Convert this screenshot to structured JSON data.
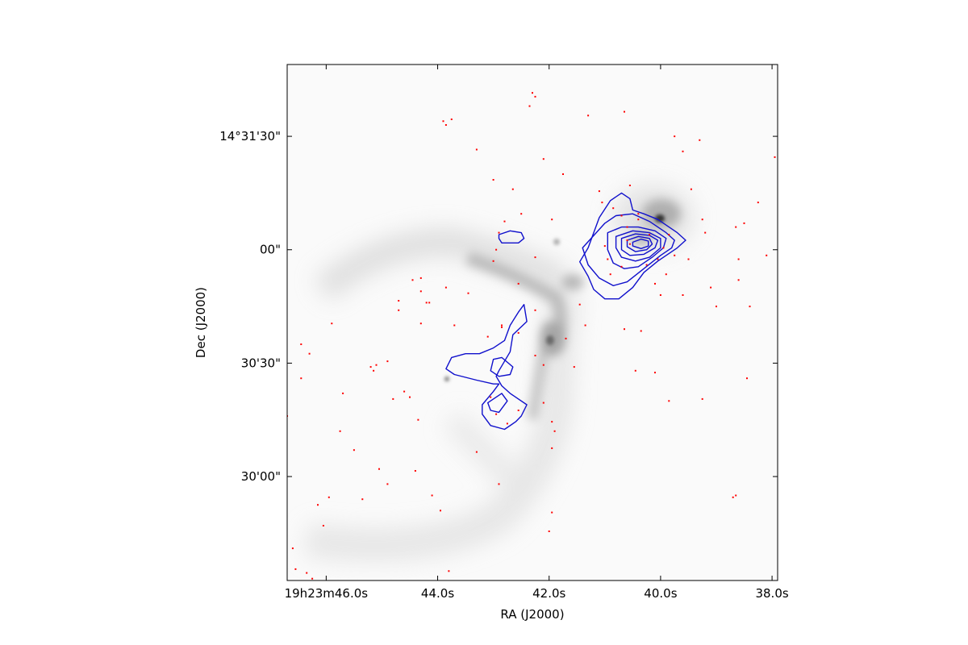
{
  "chart_data": {
    "type": "contour",
    "xlabel": "RA (J2000)",
    "ylabel": "Dec (J2000)",
    "x_axis": {
      "direction": "decreasing-right",
      "ticks": [
        {
          "label": "19h23m46.0s",
          "ra_sec": 46.0
        },
        {
          "label": "44.0s",
          "ra_sec": 44.0
        },
        {
          "label": "42.0s",
          "ra_sec": 42.0
        },
        {
          "label": "40.0s",
          "ra_sec": 40.0
        },
        {
          "label": "38.0s",
          "ra_sec": 38.0
        }
      ],
      "range_ra_sec": [
        46.7,
        37.9
      ]
    },
    "y_axis": {
      "ticks": [
        {
          "label": "14°31'30\"",
          "dec_arcsec": 90
        },
        {
          "label": "00\"",
          "dec_arcsec": 60
        },
        {
          "label": "30'30\"",
          "dec_arcsec": 30
        },
        {
          "label": "30'00\"",
          "dec_arcsec": 0
        }
      ],
      "dec_offset_note": "",
      "range_dec_arcsec": [
        -27.5,
        109
      ]
    },
    "colors": {
      "background": "#ffffff",
      "contour": "#1010cc",
      "sources": "#ff0000",
      "frame": "#000000"
    },
    "grid": false,
    "contours": [
      {
        "group": "main",
        "level": 1,
        "points": [
          [
            41.45,
            56.8
          ],
          [
            41.3,
            60.5
          ],
          [
            41.1,
            68.5
          ],
          [
            40.9,
            73.0
          ],
          [
            40.7,
            75.0
          ],
          [
            40.55,
            73.5
          ],
          [
            40.5,
            70.5
          ],
          [
            40.3,
            69.5
          ],
          [
            40.05,
            68.0
          ],
          [
            39.85,
            66.0
          ],
          [
            39.7,
            64.5
          ],
          [
            39.55,
            62.5
          ],
          [
            39.7,
            60.5
          ],
          [
            39.85,
            59.0
          ],
          [
            40.05,
            57.0
          ],
          [
            40.3,
            54.0
          ],
          [
            40.5,
            50.0
          ],
          [
            40.75,
            47.0
          ],
          [
            41.0,
            47.0
          ],
          [
            41.2,
            49.5
          ],
          [
            41.3,
            53.0
          ],
          [
            41.45,
            56.8
          ]
        ]
      },
      {
        "group": "main",
        "level": 2,
        "points": [
          [
            41.4,
            60.5
          ],
          [
            41.0,
            67.0
          ],
          [
            40.8,
            69.0
          ],
          [
            40.5,
            69.5
          ],
          [
            40.2,
            67.5
          ],
          [
            39.9,
            64.5
          ],
          [
            39.75,
            62.5
          ],
          [
            39.8,
            60.5
          ],
          [
            40.0,
            58.5
          ],
          [
            40.3,
            55.0
          ],
          [
            40.6,
            51.5
          ],
          [
            40.85,
            50.5
          ],
          [
            41.1,
            52.5
          ],
          [
            41.3,
            56.0
          ],
          [
            41.4,
            60.5
          ]
        ]
      },
      {
        "group": "main",
        "level": 3,
        "points": [
          [
            40.95,
            64.5
          ],
          [
            40.7,
            66.0
          ],
          [
            40.4,
            66.0
          ],
          [
            40.1,
            65.0
          ],
          [
            39.9,
            63.0
          ],
          [
            39.95,
            60.5
          ],
          [
            40.15,
            58.0
          ],
          [
            40.4,
            55.5
          ],
          [
            40.65,
            55.0
          ],
          [
            40.85,
            56.5
          ],
          [
            40.95,
            60.0
          ],
          [
            40.95,
            64.5
          ]
        ]
      },
      {
        "group": "main",
        "level": 4,
        "points": [
          [
            40.8,
            63.5
          ],
          [
            40.5,
            65.0
          ],
          [
            40.2,
            64.5
          ],
          [
            40.0,
            63.0
          ],
          [
            40.0,
            60.5
          ],
          [
            40.2,
            58.0
          ],
          [
            40.45,
            57.0
          ],
          [
            40.7,
            58.0
          ],
          [
            40.8,
            60.5
          ],
          [
            40.8,
            63.5
          ]
        ]
      },
      {
        "group": "main",
        "level": 5,
        "points": [
          [
            40.7,
            63.0
          ],
          [
            40.45,
            64.2
          ],
          [
            40.2,
            63.8
          ],
          [
            40.05,
            62.5
          ],
          [
            40.1,
            60.5
          ],
          [
            40.3,
            58.8
          ],
          [
            40.55,
            58.5
          ],
          [
            40.7,
            60.0
          ],
          [
            40.7,
            63.0
          ]
        ]
      },
      {
        "group": "main",
        "level": 6,
        "points": [
          [
            40.6,
            62.5
          ],
          [
            40.4,
            63.5
          ],
          [
            40.2,
            63.0
          ],
          [
            40.15,
            61.5
          ],
          [
            40.25,
            60.0
          ],
          [
            40.45,
            59.5
          ],
          [
            40.6,
            60.8
          ],
          [
            40.6,
            62.5
          ]
        ]
      },
      {
        "group": "main",
        "level": 7,
        "points": [
          [
            40.5,
            62.0
          ],
          [
            40.35,
            62.8
          ],
          [
            40.22,
            62.3
          ],
          [
            40.22,
            61.0
          ],
          [
            40.35,
            60.3
          ],
          [
            40.5,
            61.0
          ],
          [
            40.5,
            62.0
          ]
        ]
      },
      {
        "group": "small-blob",
        "level": 1,
        "points": [
          [
            42.9,
            64.0
          ],
          [
            42.7,
            65.0
          ],
          [
            42.5,
            64.5
          ],
          [
            42.45,
            63.0
          ],
          [
            42.55,
            61.8
          ],
          [
            42.85,
            61.8
          ],
          [
            42.9,
            63.0
          ],
          [
            42.9,
            64.0
          ]
        ]
      },
      {
        "group": "southern",
        "level": 1,
        "points": [
          [
            42.45,
            45.5
          ],
          [
            42.4,
            41.0
          ],
          [
            42.65,
            37.5
          ],
          [
            42.7,
            33.0
          ],
          [
            42.9,
            28.0
          ],
          [
            42.95,
            26.5
          ],
          [
            42.85,
            24.0
          ],
          [
            42.7,
            22.0
          ],
          [
            42.4,
            19.0
          ],
          [
            42.5,
            16.0
          ],
          [
            42.6,
            14.5
          ],
          [
            42.8,
            12.5
          ],
          [
            43.05,
            13.5
          ],
          [
            43.2,
            16.5
          ],
          [
            43.2,
            19.0
          ],
          [
            43.0,
            22.5
          ],
          [
            42.9,
            24.5
          ],
          [
            43.0,
            24.5
          ],
          [
            43.3,
            25.5
          ],
          [
            43.7,
            27.0
          ],
          [
            43.85,
            28.5
          ],
          [
            43.75,
            31.5
          ],
          [
            43.5,
            32.5
          ],
          [
            43.25,
            32.5
          ],
          [
            43.0,
            34.0
          ],
          [
            42.8,
            36.0
          ],
          [
            42.7,
            40.0
          ],
          [
            42.55,
            43.5
          ],
          [
            42.45,
            45.5
          ]
        ]
      },
      {
        "group": "southern",
        "level": 2,
        "points": [
          [
            43.0,
            31.0
          ],
          [
            42.85,
            31.5
          ],
          [
            42.65,
            29.0
          ],
          [
            42.7,
            27.0
          ],
          [
            42.9,
            26.5
          ],
          [
            43.05,
            28.0
          ],
          [
            43.0,
            31.0
          ]
        ]
      },
      {
        "group": "southern",
        "level": 2,
        "points": [
          [
            42.85,
            22.0
          ],
          [
            42.75,
            20.0
          ],
          [
            42.9,
            17.0
          ],
          [
            43.05,
            17.5
          ],
          [
            43.1,
            19.5
          ],
          [
            42.85,
            22.0
          ]
        ]
      }
    ],
    "point_sources": [
      [
        42.3,
        101.5
      ],
      [
        42.25,
        100.5
      ],
      [
        42.35,
        98.0
      ],
      [
        41.3,
        95.5
      ],
      [
        40.65,
        96.5
      ],
      [
        43.9,
        94.0
      ],
      [
        43.75,
        94.5
      ],
      [
        43.85,
        93.0
      ],
      [
        39.75,
        90.0
      ],
      [
        39.3,
        89.0
      ],
      [
        39.6,
        86.0
      ],
      [
        42.1,
        84.0
      ],
      [
        41.75,
        80.0
      ],
      [
        40.55,
        77.0
      ],
      [
        41.1,
        75.5
      ],
      [
        42.65,
        76.0
      ],
      [
        43.3,
        86.5
      ],
      [
        43.0,
        78.5
      ],
      [
        42.5,
        69.5
      ],
      [
        41.95,
        68.0
      ],
      [
        39.2,
        64.5
      ],
      [
        39.25,
        68.0
      ],
      [
        39.45,
        76.0
      ],
      [
        38.5,
        67.0
      ],
      [
        38.1,
        58.5
      ],
      [
        42.9,
        64.5
      ],
      [
        43.0,
        57.0
      ],
      [
        44.7,
        46.5
      ],
      [
        44.3,
        40.5
      ],
      [
        43.7,
        40.0
      ],
      [
        42.85,
        39.5
      ],
      [
        43.1,
        37.0
      ],
      [
        44.2,
        46.0
      ],
      [
        43.45,
        48.5
      ],
      [
        42.25,
        44.0
      ],
      [
        41.45,
        45.5
      ],
      [
        41.35,
        40.0
      ],
      [
        41.7,
        36.5
      ],
      [
        40.35,
        38.5
      ],
      [
        40.65,
        39.0
      ],
      [
        40.0,
        48.0
      ],
      [
        39.6,
        48.0
      ],
      [
        39.0,
        45.0
      ],
      [
        38.4,
        45.0
      ],
      [
        38.6,
        52.0
      ],
      [
        38.65,
        66.0
      ],
      [
        44.3,
        52.5
      ],
      [
        43.85,
        50.0
      ],
      [
        44.15,
        46.0
      ],
      [
        42.55,
        38.0
      ],
      [
        42.85,
        40.0
      ],
      [
        42.25,
        32.0
      ],
      [
        41.55,
        29.0
      ],
      [
        40.45,
        28.0
      ],
      [
        40.1,
        27.5
      ],
      [
        39.85,
        20.0
      ],
      [
        38.45,
        26.0
      ],
      [
        39.25,
        20.5
      ],
      [
        45.7,
        22.0
      ],
      [
        45.1,
        29.5
      ],
      [
        44.9,
        30.5
      ],
      [
        44.7,
        44.0
      ],
      [
        45.2,
        29.0
      ],
      [
        46.45,
        26.0
      ],
      [
        46.3,
        32.5
      ],
      [
        46.45,
        35.0
      ],
      [
        45.9,
        40.5
      ],
      [
        45.15,
        28.0
      ],
      [
        44.8,
        20.5
      ],
      [
        44.5,
        21.0
      ],
      [
        42.1,
        29.5
      ],
      [
        43.05,
        21.0
      ],
      [
        42.75,
        14.0
      ],
      [
        42.95,
        16.5
      ],
      [
        42.55,
        17.5
      ],
      [
        42.1,
        19.5
      ],
      [
        41.95,
        14.5
      ],
      [
        41.9,
        12.0
      ],
      [
        41.95,
        7.5
      ],
      [
        43.3,
        6.5
      ],
      [
        44.35,
        15.0
      ],
      [
        44.6,
        22.5
      ],
      [
        45.75,
        12.0
      ],
      [
        45.5,
        7.0
      ],
      [
        45.05,
        2.0
      ],
      [
        44.9,
        -2.0
      ],
      [
        44.4,
        1.5
      ],
      [
        44.1,
        -5.0
      ],
      [
        43.95,
        -9.0
      ],
      [
        42.9,
        -2.0
      ],
      [
        41.95,
        -9.5
      ],
      [
        45.35,
        -6.0
      ],
      [
        45.95,
        -5.5
      ],
      [
        46.15,
        -7.5
      ],
      [
        46.05,
        -13.0
      ],
      [
        46.6,
        -19.0
      ],
      [
        46.35,
        -25.5
      ],
      [
        46.25,
        -27.0
      ],
      [
        46.55,
        -24.5
      ],
      [
        43.8,
        -25.0
      ],
      [
        42.0,
        -14.5
      ],
      [
        38.65,
        -5.0
      ],
      [
        38.7,
        -5.5
      ],
      [
        38.25,
        72.5
      ],
      [
        37.95,
        84.5
      ],
      [
        38.6,
        57.5
      ],
      [
        39.5,
        57.5
      ],
      [
        39.9,
        53.5
      ],
      [
        40.1,
        51.0
      ],
      [
        39.75,
        58.5
      ],
      [
        39.85,
        64.0
      ],
      [
        40.4,
        69.5
      ],
      [
        40.6,
        66.0
      ],
      [
        41.0,
        61.0
      ],
      [
        40.95,
        57.5
      ],
      [
        40.7,
        55.5
      ],
      [
        40.9,
        53.5
      ],
      [
        40.25,
        56.0
      ],
      [
        40.05,
        57.5
      ],
      [
        40.2,
        64.0
      ],
      [
        39.95,
        60.5
      ],
      [
        41.05,
        72.5
      ],
      [
        40.85,
        71.0
      ],
      [
        40.7,
        69.0
      ],
      [
        40.4,
        68.0
      ],
      [
        40.6,
        62.5
      ],
      [
        40.55,
        61.5
      ],
      [
        39.1,
        50.0
      ],
      [
        42.55,
        51.0
      ],
      [
        42.25,
        58.0
      ],
      [
        44.3,
        49.0
      ],
      [
        44.45,
        52.0
      ],
      [
        42.95,
        60.0
      ],
      [
        42.8,
        67.5
      ],
      [
        46.7,
        16.0
      ],
      [
        46.75,
        -19.0
      ]
    ]
  }
}
